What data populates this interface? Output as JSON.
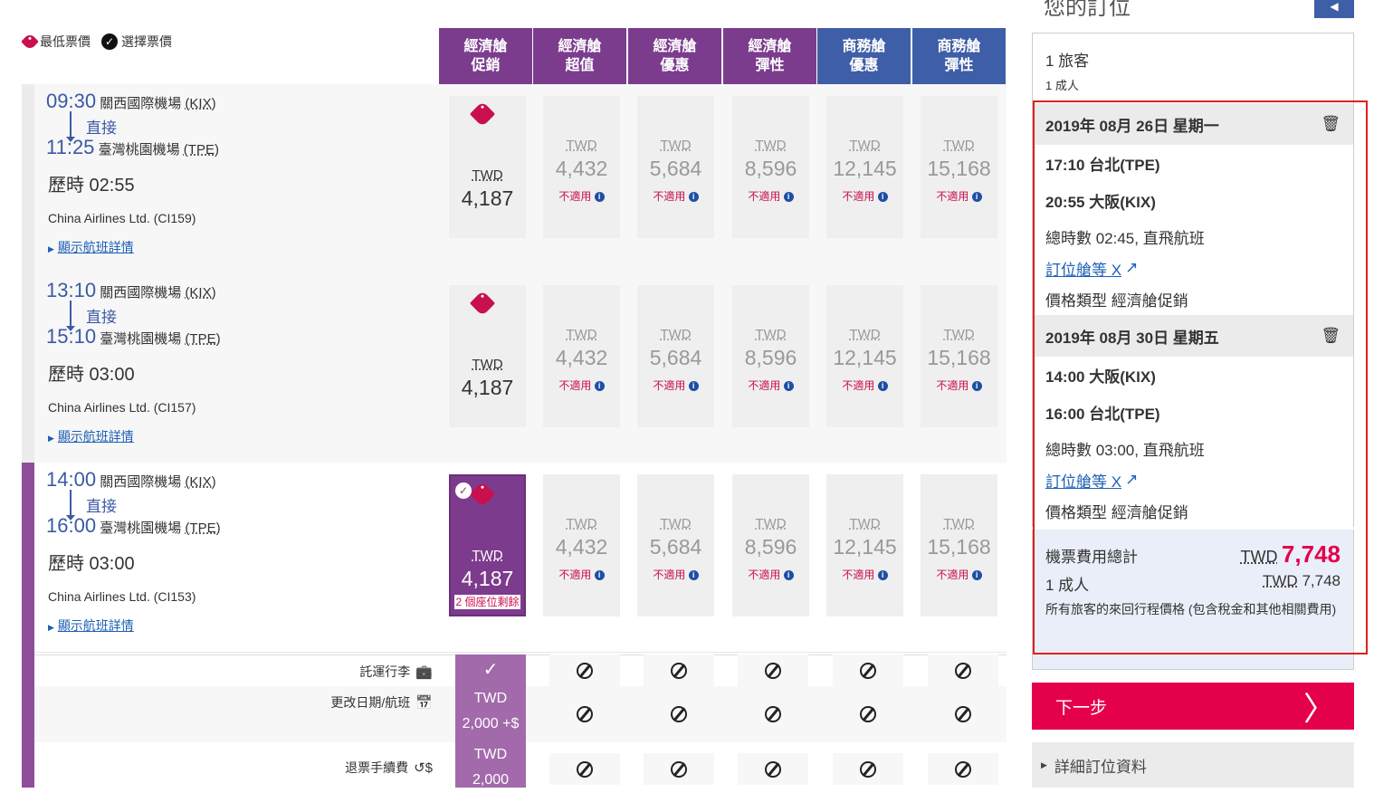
{
  "legend": {
    "lowest": "最低票價",
    "selected": "選擇票價"
  },
  "columns": [
    {
      "label": "經濟艙\n促銷",
      "color": "#7b3c8e"
    },
    {
      "label": "經濟艙\n超值",
      "color": "#7b3c8e"
    },
    {
      "label": "經濟艙\n優惠",
      "color": "#7b3c8e"
    },
    {
      "label": "經濟艙\n彈性",
      "color": "#7b3c8e"
    },
    {
      "label": "商務艙\n優惠",
      "color": "#3f5ea8"
    },
    {
      "label": "商務艙\n彈性",
      "color": "#3f5ea8"
    }
  ],
  "flights": [
    {
      "dep_time": "09:30",
      "dep_airport": "關西國際機場",
      "dep_code": "(KIX)",
      "direct": "直接",
      "arr_time": "11:25",
      "arr_airport": "臺灣桃園機場",
      "arr_code": "(TPE)",
      "duration": "歷時 02:55",
      "airline": "China Airlines Ltd. (CI159)",
      "details": "顯示航班詳情",
      "selected": false
    },
    {
      "dep_time": "13:10",
      "dep_airport": "關西國際機場",
      "dep_code": "(KIX)",
      "direct": "直接",
      "arr_time": "15:10",
      "arr_airport": "臺灣桃園機場",
      "arr_code": "(TPE)",
      "duration": "歷時 03:00",
      "airline": "China Airlines Ltd. (CI157)",
      "details": "顯示航班詳情",
      "selected": false
    },
    {
      "dep_time": "14:00",
      "dep_airport": "關西國際機場",
      "dep_code": "(KIX)",
      "direct": "直接",
      "arr_time": "16:00",
      "arr_airport": "臺灣桃園機場",
      "arr_code": "(TPE)",
      "duration": "歷時 03:00",
      "airline": "China Airlines Ltd. (CI153)",
      "details": "顯示航班詳情",
      "selected": true,
      "seats_left": "2 個座位剩餘"
    }
  ],
  "fares": {
    "currency": "TWD",
    "prices": [
      "4,187",
      "4,432",
      "5,684",
      "8,596",
      "12,145",
      "15,168"
    ],
    "unavailable": "不適用"
  },
  "ancillaries": [
    {
      "label": "託運行李",
      "icon": "briefcase-icon",
      "first": "✓"
    },
    {
      "label": "更改日期/航班",
      "icon": "calendar-icon",
      "first": "TWD\n2,000 +$"
    },
    {
      "label": "退票手續費",
      "icon": "refund-icon",
      "first": "TWD\n2,000"
    }
  ],
  "summary": {
    "title": "您的訂位",
    "travellers": "1 旅客",
    "adults": "1 成人",
    "legs": [
      {
        "date": "2019年 08月 26日 星期一",
        "dep": "17:10 台北(TPE)",
        "arr": "20:55 大阪(KIX)",
        "total": "總時數 02:45, 直飛航班",
        "class_link": "訂位艙等 X",
        "fare_type": "價格類型 經濟艙促銷"
      },
      {
        "date": "2019年 08月 30日 星期五",
        "dep": "14:00 大阪(KIX)",
        "arr": "16:00 台北(TPE)",
        "total": "總時數 03:00, 直飛航班",
        "class_link": "訂位艙等 X",
        "fare_type": "價格類型 經濟艙促銷"
      }
    ],
    "total_label": "機票費用總計",
    "total_cur": "TWD",
    "total_amt": "7,748",
    "adult_label": "1 成人",
    "adult_cur": "TWD",
    "adult_amt": "7,748",
    "note": "所有旅客的來回行程價格 (包含稅金和其他相關費用)",
    "next": "下一步",
    "details": "詳細訂位資料"
  },
  "colors": {
    "accent": "#e4004b",
    "purple": "#7b3c8e",
    "blue": "#3f5ea8",
    "highlight": "#e02020"
  }
}
